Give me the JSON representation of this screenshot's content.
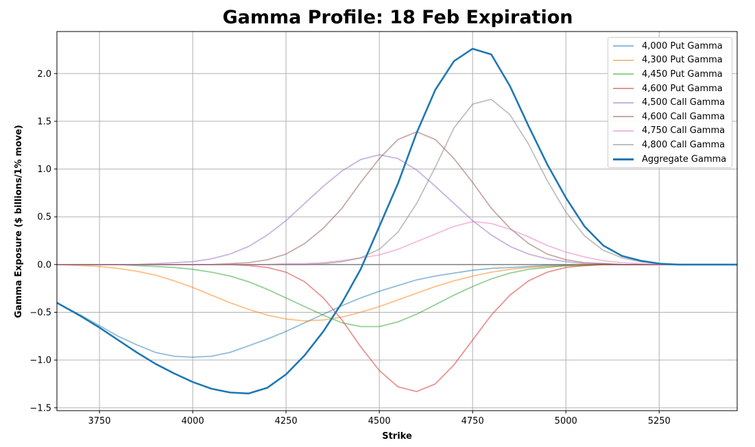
{
  "chart_data": {
    "type": "line",
    "title": "Gamma Profile: 18 Feb Expiration",
    "xlabel": "Strike",
    "ylabel": "Gamma Exposure ($ billions/1% move)",
    "xlim": [
      3636,
      5459
    ],
    "ylim": [
      -1.53,
      2.44
    ],
    "xticks": [
      3750,
      4000,
      4250,
      4500,
      4750,
      5000,
      5250
    ],
    "yticks": [
      -1.5,
      -1.0,
      -0.5,
      0.0,
      0.5,
      1.0,
      1.5,
      2.0
    ],
    "ytick_labels": [
      "−1.5",
      "−1.0",
      "−0.5",
      "0.0",
      "0.5",
      "1.0",
      "1.5",
      "2.0"
    ],
    "grid": true,
    "legend_position": "upper right",
    "zero_line": true,
    "x": [
      3636,
      3700,
      3750,
      3800,
      3850,
      3900,
      3950,
      4000,
      4050,
      4100,
      4150,
      4200,
      4250,
      4300,
      4350,
      4400,
      4450,
      4500,
      4550,
      4600,
      4650,
      4700,
      4750,
      4800,
      4850,
      4900,
      4950,
      5000,
      5050,
      5100,
      5150,
      5200,
      5250,
      5300,
      5350,
      5400,
      5459
    ],
    "series": [
      {
        "name": "4,000 Put Gamma",
        "color": "#1f77b4",
        "alpha": 0.5,
        "width": 1.8,
        "values": [
          -0.4,
          -0.53,
          -0.64,
          -0.75,
          -0.84,
          -0.92,
          -0.96,
          -0.97,
          -0.96,
          -0.92,
          -0.85,
          -0.78,
          -0.7,
          -0.61,
          -0.52,
          -0.43,
          -0.35,
          -0.28,
          -0.22,
          -0.16,
          -0.12,
          -0.09,
          -0.06,
          -0.04,
          -0.03,
          -0.02,
          -0.01,
          -0.01,
          0,
          0,
          0,
          0,
          0,
          0,
          0,
          0,
          0
        ]
      },
      {
        "name": "4,300 Put Gamma",
        "color": "#ff7f0e",
        "alpha": 0.5,
        "width": 1.8,
        "values": [
          0,
          -0.01,
          -0.02,
          -0.04,
          -0.07,
          -0.11,
          -0.17,
          -0.24,
          -0.32,
          -0.4,
          -0.47,
          -0.53,
          -0.57,
          -0.59,
          -0.58,
          -0.55,
          -0.5,
          -0.44,
          -0.37,
          -0.3,
          -0.23,
          -0.17,
          -0.12,
          -0.08,
          -0.05,
          -0.03,
          -0.02,
          -0.01,
          0,
          0,
          0,
          0,
          0,
          0,
          0,
          0,
          0
        ]
      },
      {
        "name": "4,450 Put Gamma",
        "color": "#2ca02c",
        "alpha": 0.5,
        "width": 1.8,
        "values": [
          0,
          0,
          0,
          0,
          -0.01,
          -0.02,
          -0.03,
          -0.05,
          -0.08,
          -0.12,
          -0.18,
          -0.26,
          -0.35,
          -0.44,
          -0.53,
          -0.61,
          -0.65,
          -0.65,
          -0.6,
          -0.52,
          -0.42,
          -0.32,
          -0.23,
          -0.15,
          -0.09,
          -0.05,
          -0.03,
          -0.01,
          -0.01,
          0,
          0,
          0,
          0,
          0,
          0,
          0,
          0
        ]
      },
      {
        "name": "4,600 Put Gamma",
        "color": "#d62728",
        "alpha": 0.5,
        "width": 1.8,
        "values": [
          0,
          0,
          0,
          0,
          0,
          0,
          0,
          0,
          0,
          0,
          -0.01,
          -0.03,
          -0.08,
          -0.18,
          -0.35,
          -0.58,
          -0.86,
          -1.11,
          -1.28,
          -1.33,
          -1.25,
          -1.05,
          -0.79,
          -0.53,
          -0.32,
          -0.17,
          -0.08,
          -0.03,
          -0.01,
          0,
          0,
          0,
          0,
          0,
          0,
          0,
          0
        ]
      },
      {
        "name": "4,500 Call Gamma",
        "color": "#9467bd",
        "alpha": 0.5,
        "width": 1.8,
        "values": [
          0,
          0,
          0,
          0,
          0,
          0.01,
          0.02,
          0.03,
          0.06,
          0.11,
          0.19,
          0.31,
          0.46,
          0.64,
          0.82,
          0.98,
          1.1,
          1.15,
          1.11,
          0.99,
          0.82,
          0.64,
          0.46,
          0.31,
          0.19,
          0.11,
          0.06,
          0.03,
          0.01,
          0.01,
          0,
          0,
          0,
          0,
          0,
          0,
          0
        ]
      },
      {
        "name": "4,600 Call Gamma",
        "color": "#8c564b",
        "alpha": 0.5,
        "width": 1.8,
        "values": [
          0,
          0,
          0,
          0,
          0,
          0,
          0,
          0,
          0,
          0.01,
          0.02,
          0.05,
          0.11,
          0.22,
          0.38,
          0.59,
          0.86,
          1.11,
          1.31,
          1.39,
          1.31,
          1.11,
          0.86,
          0.59,
          0.38,
          0.22,
          0.11,
          0.05,
          0.02,
          0.01,
          0,
          0,
          0,
          0,
          0,
          0,
          0
        ]
      },
      {
        "name": "4,750 Call Gamma",
        "color": "#e377c2",
        "alpha": 0.5,
        "width": 1.8,
        "values": [
          0,
          0,
          0,
          0,
          0,
          0,
          0,
          0,
          0,
          0,
          0,
          0,
          0.01,
          0.01,
          0.02,
          0.04,
          0.07,
          0.1,
          0.16,
          0.24,
          0.32,
          0.4,
          0.45,
          0.43,
          0.37,
          0.29,
          0.2,
          0.13,
          0.08,
          0.04,
          0.02,
          0.01,
          0,
          0,
          0,
          0,
          0
        ]
      },
      {
        "name": "4,800 Call Gamma",
        "color": "#7f7f7f",
        "alpha": 0.5,
        "width": 1.8,
        "values": [
          0,
          0,
          0,
          0,
          0,
          0,
          0,
          0,
          0,
          0,
          0,
          0,
          0,
          0,
          0.01,
          0.03,
          0.07,
          0.16,
          0.34,
          0.64,
          1.02,
          1.43,
          1.68,
          1.73,
          1.57,
          1.26,
          0.88,
          0.55,
          0.3,
          0.15,
          0.07,
          0.03,
          0.01,
          0,
          0,
          0,
          0
        ]
      },
      {
        "name": "Aggregate Gamma",
        "color": "#1f77b4",
        "alpha": 1,
        "width": 2.6,
        "values": [
          -0.4,
          -0.54,
          -0.66,
          -0.79,
          -0.92,
          -1.04,
          -1.14,
          -1.23,
          -1.3,
          -1.34,
          -1.35,
          -1.29,
          -1.15,
          -0.95,
          -0.7,
          -0.4,
          -0.05,
          0.4,
          0.85,
          1.38,
          1.83,
          2.13,
          2.26,
          2.2,
          1.87,
          1.45,
          1.05,
          0.7,
          0.4,
          0.2,
          0.09,
          0.04,
          0.01,
          0,
          0,
          0,
          0
        ]
      }
    ]
  }
}
